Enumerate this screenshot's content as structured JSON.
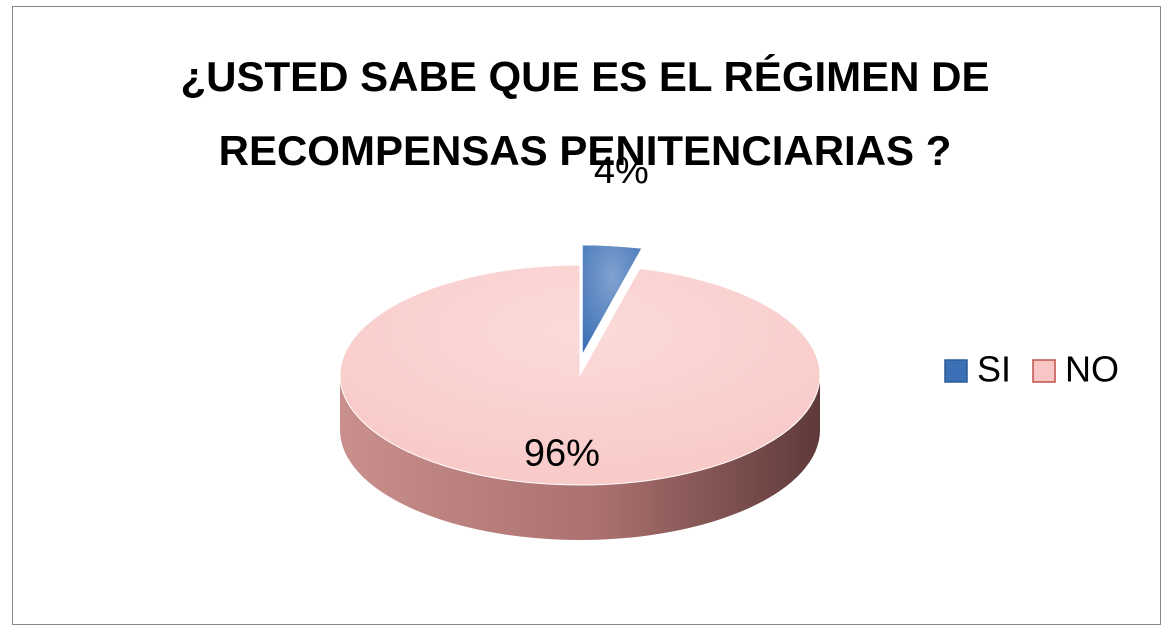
{
  "chart_data": {
    "type": "pie",
    "title": "¿USTED SABE QUE ES EL RÉGIMEN DE RECOMPENSAS PENITENCIARIAS ?",
    "categories": [
      "SI",
      "NO"
    ],
    "values": [
      4,
      96
    ],
    "value_labels": [
      "4%",
      "96%"
    ],
    "colors": [
      "#3b6fb6",
      "#f8c7c5"
    ],
    "legend": "right"
  }
}
